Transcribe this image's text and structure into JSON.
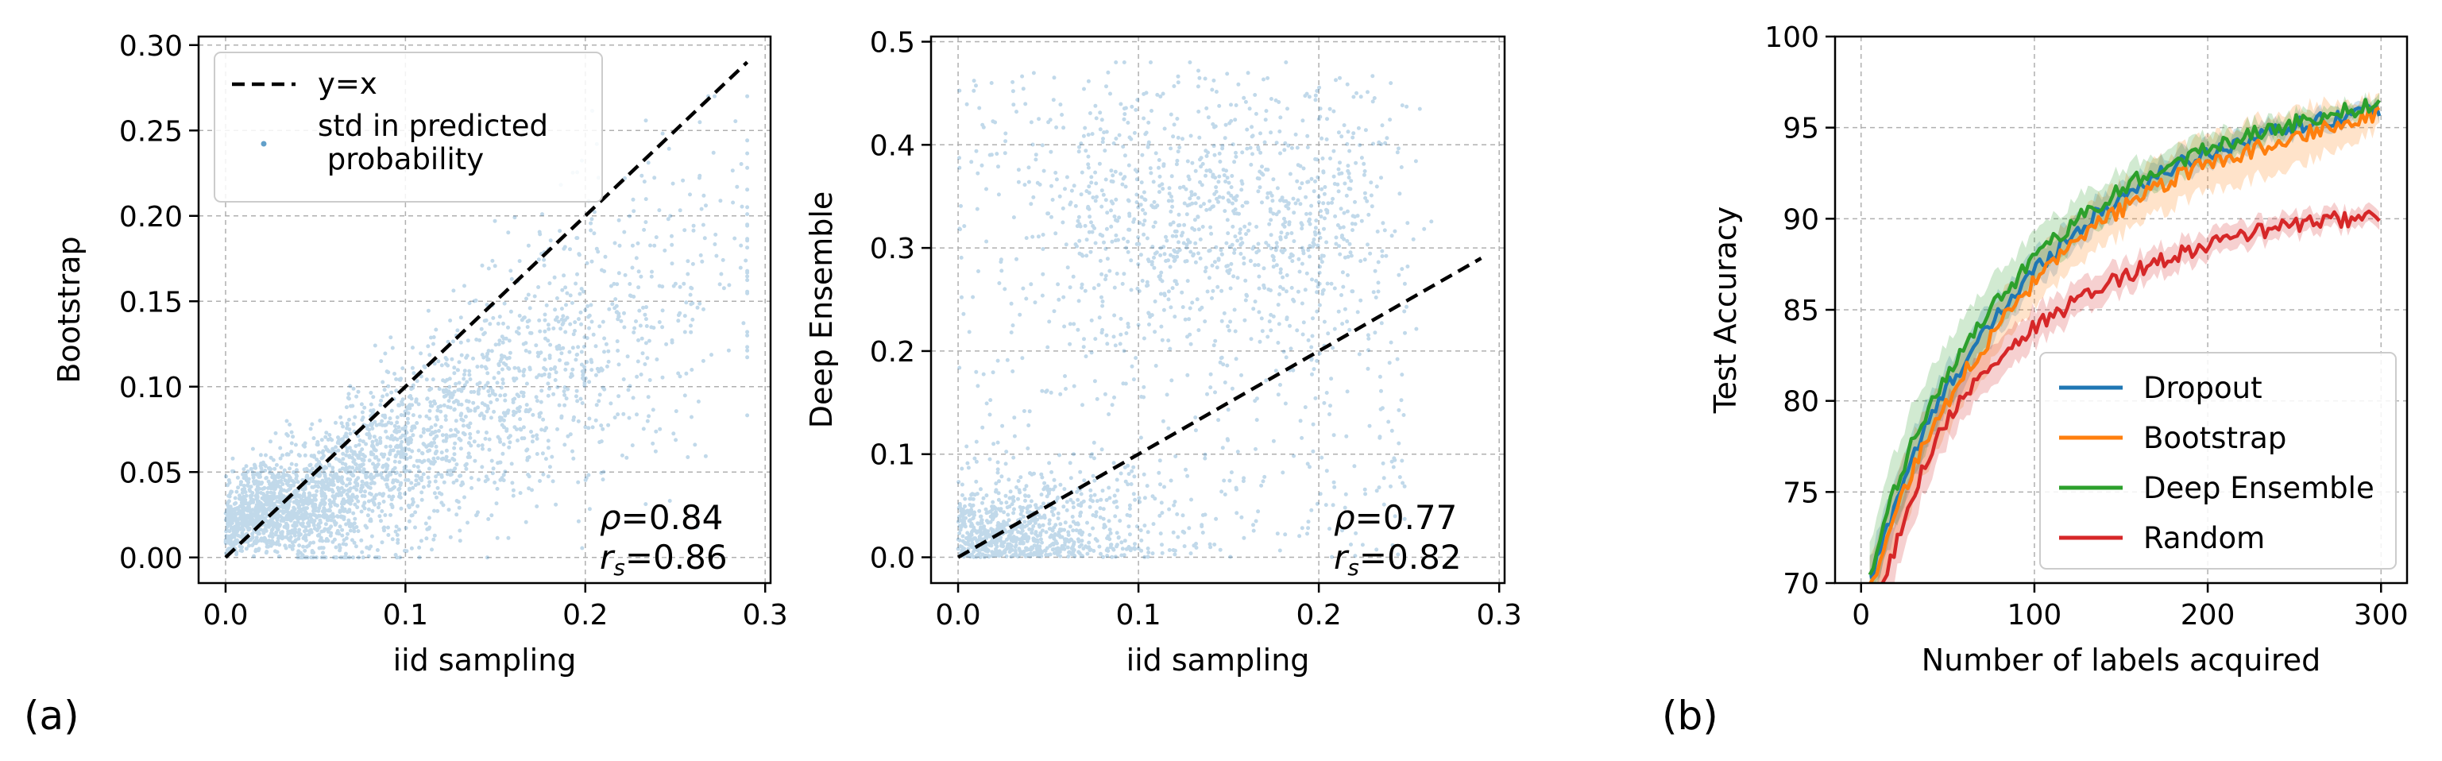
{
  "panel_labels": {
    "a": "(a)",
    "b": "(b)"
  },
  "chart_data": [
    {
      "type": "scatter",
      "xlabel": "iid sampling",
      "ylabel": "Bootstrap",
      "xlim": [
        -0.015,
        0.303
      ],
      "ylim": [
        -0.015,
        0.305
      ],
      "xticks": [
        0.0,
        0.1,
        0.2,
        0.3
      ],
      "xtick_labels": [
        "0.0",
        "0.1",
        "0.2",
        "0.3"
      ],
      "yticks": [
        0.0,
        0.05,
        0.1,
        0.15,
        0.2,
        0.25,
        0.3
      ],
      "ytick_labels": [
        "0.00",
        "0.05",
        "0.10",
        "0.15",
        "0.20",
        "0.25",
        "0.30"
      ],
      "grid": true,
      "legend": {
        "placement": "upper-left",
        "entries": [
          "y=x",
          "std in predicted\n probability"
        ]
      },
      "reference_line": {
        "name": "y=x",
        "x": [
          0.0,
          0.29
        ],
        "y": [
          0.0,
          0.29
        ],
        "color": "#000000",
        "style": "dashed"
      },
      "scatter_color": "#1f77b4",
      "annotation": {
        "rho_symbol": "ρ",
        "rho_value": "=0.84",
        "rs_symbol": "r",
        "rs_sub": "s",
        "rs_value": "=0.86"
      },
      "cluster_summary": {
        "x_range": [
          0.0,
          0.29
        ],
        "y_range": [
          0.0,
          0.22
        ],
        "correlation_pearson": 0.84,
        "correlation_spearman": 0.86
      }
    },
    {
      "type": "scatter",
      "xlabel": "iid sampling",
      "ylabel": "Deep Ensemble",
      "xlim": [
        -0.015,
        0.303
      ],
      "ylim": [
        -0.025,
        0.505
      ],
      "xticks": [
        0.0,
        0.1,
        0.2,
        0.3
      ],
      "xtick_labels": [
        "0.0",
        "0.1",
        "0.2",
        "0.3"
      ],
      "yticks": [
        0.0,
        0.1,
        0.2,
        0.3,
        0.4,
        0.5
      ],
      "ytick_labels": [
        "0.0",
        "0.1",
        "0.2",
        "0.3",
        "0.4",
        "0.5"
      ],
      "grid": true,
      "reference_line": {
        "name": "y=x",
        "x": [
          0.0,
          0.29
        ],
        "y": [
          0.0,
          0.29
        ],
        "color": "#000000",
        "style": "dashed"
      },
      "scatter_color": "#1f77b4",
      "annotation": {
        "rho_symbol": "ρ",
        "rho_value": "=0.77",
        "rs_symbol": "r",
        "rs_sub": "s",
        "rs_value": "=0.82"
      },
      "cluster_summary": {
        "x_range": [
          0.0,
          0.29
        ],
        "y_range": [
          0.0,
          0.48
        ],
        "correlation_pearson": 0.77,
        "correlation_spearman": 0.82
      }
    },
    {
      "type": "line",
      "xlabel": "Number of labels acquired",
      "ylabel": "Test Accuracy",
      "xlim": [
        -15,
        315
      ],
      "ylim": [
        70,
        100
      ],
      "xticks": [
        0,
        100,
        200,
        300
      ],
      "xtick_labels": [
        "0",
        "100",
        "200",
        "300"
      ],
      "yticks": [
        70,
        75,
        80,
        85,
        90,
        95,
        100
      ],
      "ytick_labels": [
        "70",
        "75",
        "80",
        "85",
        "90",
        "95",
        "100"
      ],
      "grid": true,
      "legend": {
        "placement": "lower-right"
      },
      "series": [
        {
          "name": "Dropout",
          "color": "#1f77b4",
          "x": [
            5,
            10,
            20,
            30,
            40,
            50,
            60,
            80,
            100,
            120,
            140,
            160,
            180,
            200,
            220,
            240,
            260,
            280,
            300
          ],
          "y": [
            70.0,
            71.5,
            74.5,
            77.0,
            79.0,
            80.8,
            82.2,
            84.8,
            87.2,
            89.0,
            90.5,
            91.8,
            92.8,
            93.6,
            94.3,
            94.9,
            95.3,
            95.7,
            96.1
          ],
          "band": [
            1.2,
            1.4,
            1.4,
            1.4,
            1.3,
            1.2,
            1.2,
            1.1,
            1.0,
            0.9,
            0.8,
            0.8,
            0.7,
            0.7,
            0.6,
            0.5,
            0.5,
            0.4,
            0.4
          ]
        },
        {
          "name": "Bootstrap",
          "color": "#ff7f0e",
          "x": [
            5,
            10,
            20,
            30,
            40,
            50,
            60,
            80,
            100,
            120,
            140,
            160,
            180,
            200,
            220,
            240,
            260,
            280,
            300
          ],
          "y": [
            70.0,
            71.0,
            73.8,
            76.2,
            78.2,
            80.0,
            81.6,
            84.2,
            86.5,
            88.3,
            89.9,
            91.1,
            92.2,
            93.0,
            93.6,
            94.2,
            94.8,
            95.3,
            95.9
          ],
          "band": [
            1.5,
            1.8,
            1.8,
            1.8,
            1.7,
            1.6,
            1.5,
            1.4,
            1.4,
            1.4,
            1.4,
            1.4,
            1.5,
            1.5,
            1.6,
            1.6,
            1.5,
            1.2,
            0.8
          ]
        },
        {
          "name": "Deep Ensemble",
          "color": "#2ca02c",
          "x": [
            5,
            10,
            20,
            30,
            40,
            50,
            60,
            80,
            100,
            120,
            140,
            160,
            180,
            200,
            220,
            240,
            260,
            280,
            300
          ],
          "y": [
            70.0,
            72.2,
            75.2,
            77.8,
            79.8,
            81.6,
            83.0,
            85.6,
            87.8,
            89.6,
            91.0,
            92.2,
            93.1,
            93.8,
            94.5,
            95.0,
            95.5,
            95.9,
            96.3
          ],
          "band": [
            1.8,
            2.0,
            2.0,
            2.0,
            1.9,
            1.8,
            1.7,
            1.5,
            1.3,
            1.2,
            1.1,
            1.0,
            0.9,
            0.8,
            0.7,
            0.6,
            0.5,
            0.4,
            0.4
          ]
        },
        {
          "name": "Random",
          "color": "#d62728",
          "x": [
            5,
            10,
            20,
            30,
            40,
            50,
            60,
            80,
            100,
            120,
            140,
            160,
            180,
            200,
            220,
            240,
            260,
            280,
            300
          ],
          "y": [
            67.0,
            69.0,
            72.0,
            75.0,
            77.2,
            79.0,
            80.4,
            82.4,
            84.0,
            85.2,
            86.3,
            87.2,
            88.0,
            88.6,
            89.1,
            89.5,
            89.8,
            90.0,
            90.2
          ],
          "band": [
            1.5,
            1.6,
            1.6,
            1.5,
            1.4,
            1.3,
            1.2,
            1.1,
            1.0,
            0.9,
            0.9,
            0.8,
            0.8,
            0.7,
            0.7,
            0.6,
            0.6,
            0.5,
            0.5
          ]
        }
      ]
    }
  ]
}
